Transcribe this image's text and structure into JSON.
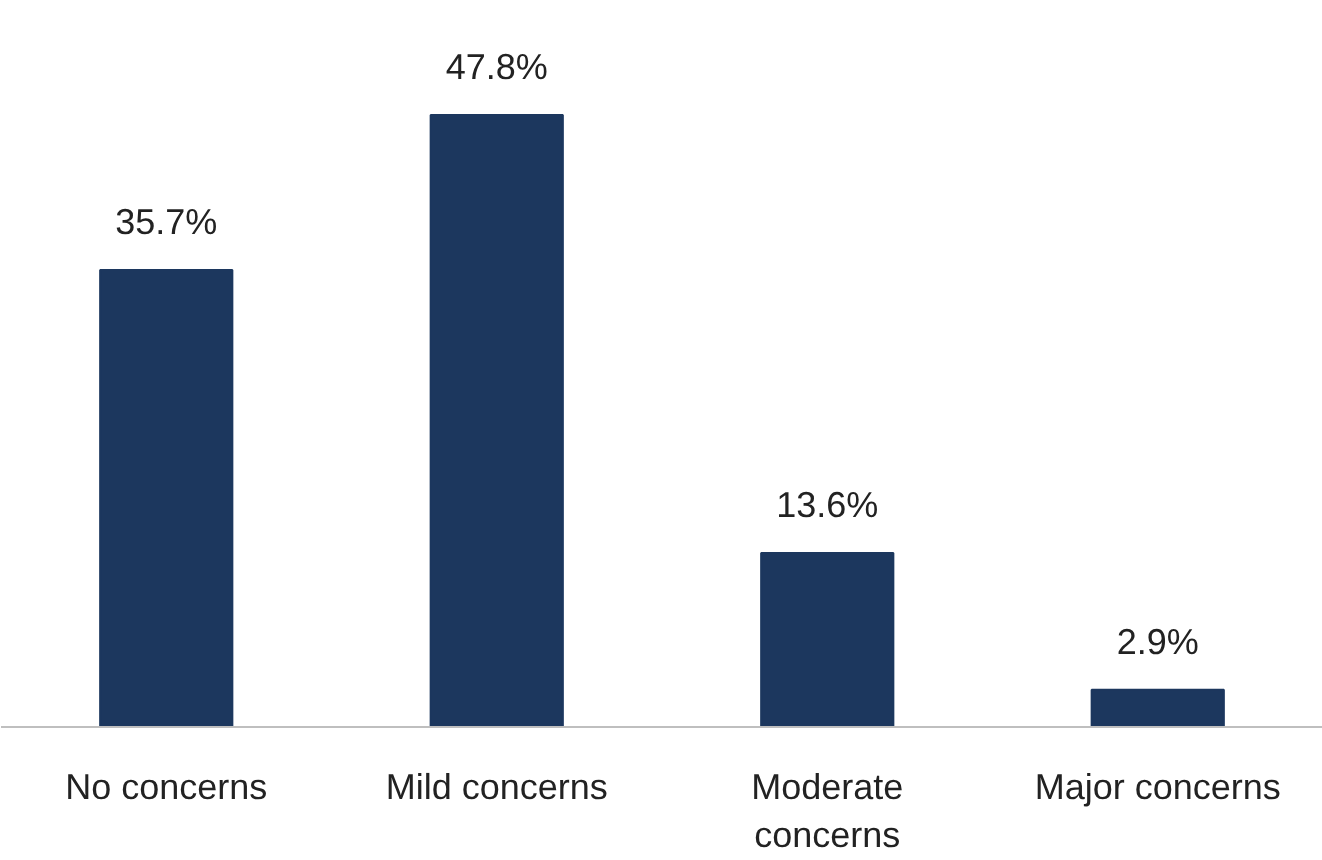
{
  "chart_data": {
    "type": "bar",
    "categories": [
      "No concerns",
      "Mild concerns",
      "Moderate concerns",
      "Major concerns"
    ],
    "values": [
      35.7,
      47.8,
      13.6,
      2.9
    ],
    "color": "#1c375e",
    "value_labels": [
      "35.7%",
      "47.8%",
      "13.6%",
      "2.9%"
    ]
  }
}
